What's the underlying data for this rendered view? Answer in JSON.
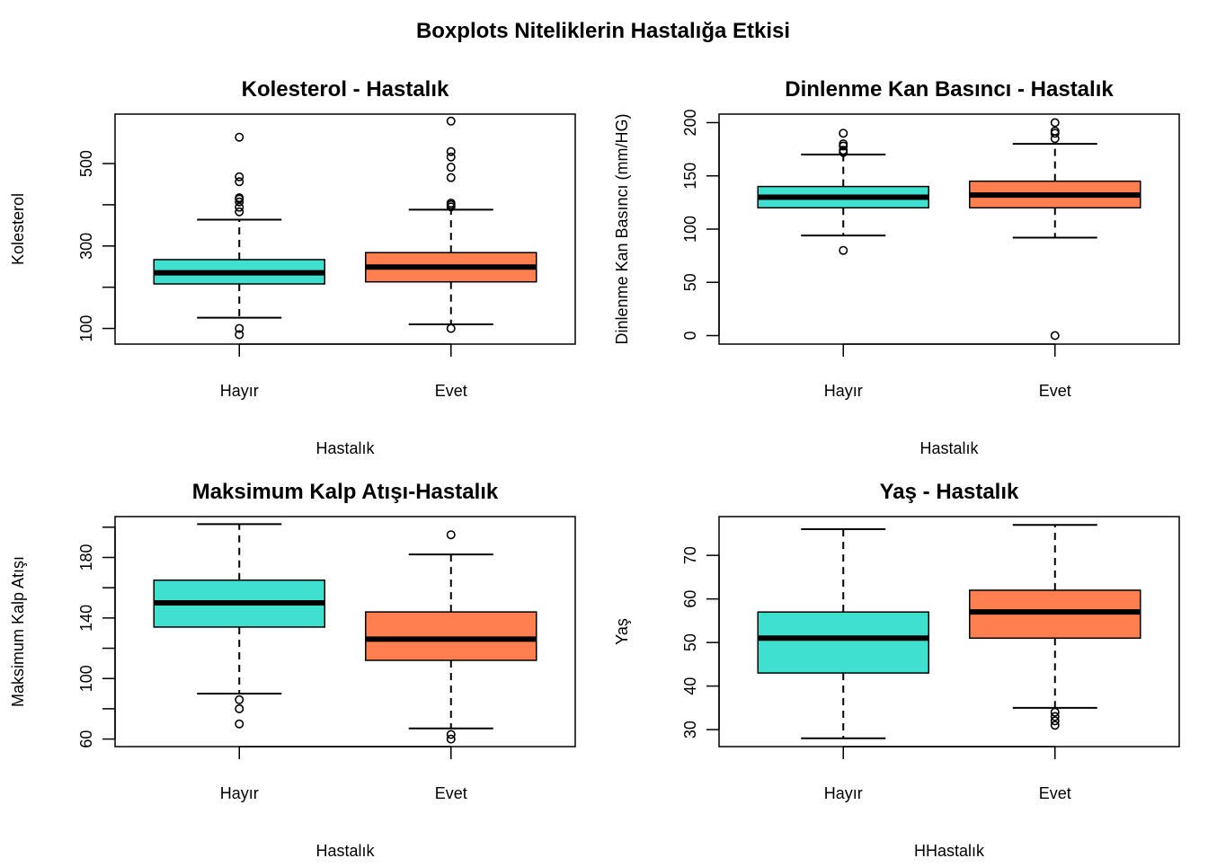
{
  "figure_title": "Boxplots Niteliklerin Hastalığa Etkisi",
  "colors": {
    "hayir": "#40E0D0",
    "evet": "#FF7F50",
    "stroke": "#000000"
  },
  "chart_data": [
    {
      "type": "box",
      "title": "Kolesterol - Hastalık",
      "xlabel": "Hastalık",
      "ylabel": "Kolesterol",
      "categories": [
        "Hayır",
        "Evet"
      ],
      "ylim": [
        62,
        620
      ],
      "yticks": [
        100,
        200,
        300,
        400,
        500
      ],
      "ytick_labels": [
        "100",
        "",
        "300",
        "",
        "500"
      ],
      "boxes": [
        {
          "category": "Hayır",
          "whisker_low": 126,
          "q1": 208,
          "median": 235,
          "q3": 267,
          "whisker_high": 364,
          "outliers": [
            85,
            100,
            383,
            394,
            407,
            414,
            417,
            456,
            468,
            564
          ]
        },
        {
          "category": "Evet",
          "whisker_low": 110,
          "q1": 213,
          "median": 249,
          "q3": 284,
          "whisker_high": 388,
          "outliers": [
            100,
            395,
            400,
            404,
            466,
            491,
            516,
            529,
            603
          ]
        }
      ]
    },
    {
      "type": "box",
      "title": "Dinlenme Kan Basıncı - Hastalık",
      "xlabel": "Hastalık",
      "ylabel": "Dinlenme Kan Basıncı (mm/HG)",
      "categories": [
        "Hayır",
        "Evet"
      ],
      "ylim": [
        -8,
        208
      ],
      "yticks": [
        0,
        50,
        100,
        150,
        200
      ],
      "ytick_labels": [
        "0",
        "50",
        "100",
        "150",
        "200"
      ],
      "boxes": [
        {
          "category": "Hayır",
          "whisker_low": 94,
          "q1": 120,
          "median": 130,
          "q3": 140,
          "whisker_high": 170,
          "outliers": [
            80,
            172,
            174,
            178,
            180,
            190
          ]
        },
        {
          "category": "Evet",
          "whisker_low": 92,
          "q1": 120,
          "median": 132,
          "q3": 145,
          "whisker_high": 180,
          "outliers": [
            0,
            185,
            190,
            192,
            200
          ]
        }
      ]
    },
    {
      "type": "box",
      "title": "Maksimum Kalp Atışı-Hastalık",
      "xlabel": "Hastalık",
      "ylabel": "Maksimum Kalp Atışı",
      "categories": [
        "Hayır",
        "Evet"
      ],
      "ylim": [
        55,
        207
      ],
      "yticks": [
        60,
        80,
        100,
        120,
        140,
        160,
        180,
        200
      ],
      "ytick_labels": [
        "60",
        "",
        "100",
        "",
        "140",
        "",
        "180",
        ""
      ],
      "boxes": [
        {
          "category": "Hayır",
          "whisker_low": 90,
          "q1": 134,
          "median": 150,
          "q3": 165,
          "whisker_high": 202,
          "outliers": [
            70,
            80,
            86
          ]
        },
        {
          "category": "Evet",
          "whisker_low": 67,
          "q1": 112,
          "median": 126,
          "q3": 144,
          "whisker_high": 182,
          "outliers": [
            60,
            63,
            195
          ]
        }
      ]
    },
    {
      "type": "box",
      "title": "Yaş - Hastalık",
      "xlabel": "HHastalık",
      "ylabel": "Yaş",
      "categories": [
        "Hayır",
        "Evet"
      ],
      "ylim": [
        26.1,
        78.9
      ],
      "yticks": [
        30,
        40,
        50,
        60,
        70
      ],
      "ytick_labels": [
        "30",
        "40",
        "50",
        "60",
        "70"
      ],
      "boxes": [
        {
          "category": "Hayır",
          "whisker_low": 28,
          "q1": 43,
          "median": 51,
          "q3": 57,
          "whisker_high": 76,
          "outliers": []
        },
        {
          "category": "Evet",
          "whisker_low": 35,
          "q1": 51,
          "median": 57,
          "q3": 62,
          "whisker_high": 77,
          "outliers": [
            31,
            32,
            33,
            34
          ]
        }
      ]
    }
  ]
}
